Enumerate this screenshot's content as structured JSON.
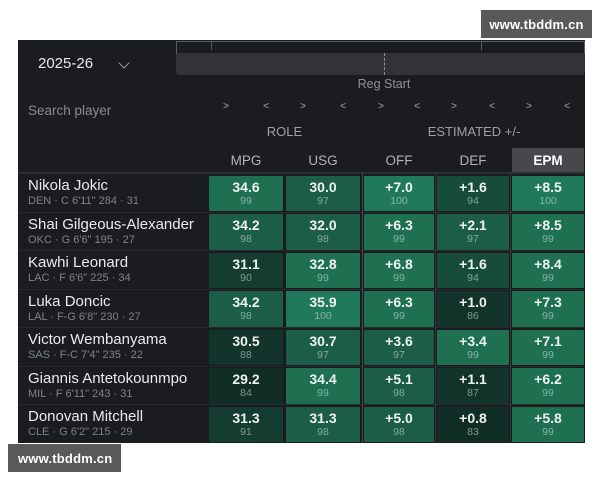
{
  "watermark": {
    "text": "www.tbddm.cn"
  },
  "season_select": {
    "value": "2025-26"
  },
  "slider": {
    "label": "Reg Start"
  },
  "search": {
    "placeholder": "Search player"
  },
  "table": {
    "groups": [
      {
        "label": "ROLE"
      },
      {
        "label": "ESTIMATED +/-"
      }
    ],
    "columns": [
      "MPG",
      "USG",
      "OFF",
      "DEF",
      "EPM"
    ],
    "selected_column": "EPM",
    "sort_arrows": {
      "asc": ">",
      "desc": "<"
    },
    "rows": [
      {
        "name": "Nikola Jokic",
        "meta": "DEN · C 6'11\" 284 · 31",
        "cells": [
          {
            "v": "34.6",
            "p": 99
          },
          {
            "v": "30.0",
            "p": 97
          },
          {
            "v": "+7.0",
            "p": 100
          },
          {
            "v": "+1.6",
            "p": 94
          },
          {
            "v": "+8.5",
            "p": 100
          }
        ]
      },
      {
        "name": "Shai Gilgeous-Alexander",
        "meta": "OKC · G 6'6\" 195 · 27",
        "cells": [
          {
            "v": "34.2",
            "p": 98
          },
          {
            "v": "32.0",
            "p": 98
          },
          {
            "v": "+6.3",
            "p": 99
          },
          {
            "v": "+2.1",
            "p": 97
          },
          {
            "v": "+8.5",
            "p": 99
          }
        ]
      },
      {
        "name": "Kawhi Leonard",
        "meta": "LAC · F 6'6\" 225 · 34",
        "cells": [
          {
            "v": "31.1",
            "p": 90
          },
          {
            "v": "32.8",
            "p": 99
          },
          {
            "v": "+6.8",
            "p": 99
          },
          {
            "v": "+1.6",
            "p": 94
          },
          {
            "v": "+8.4",
            "p": 99
          }
        ]
      },
      {
        "name": "Luka Doncic",
        "meta": "LAL · F-G 6'8\" 230 · 27",
        "cells": [
          {
            "v": "34.2",
            "p": 98
          },
          {
            "v": "35.9",
            "p": 100
          },
          {
            "v": "+6.3",
            "p": 99
          },
          {
            "v": "+1.0",
            "p": 86
          },
          {
            "v": "+7.3",
            "p": 99
          }
        ]
      },
      {
        "name": "Victor Wembanyama",
        "meta": "SAS · F-C 7'4\" 235 · 22",
        "cells": [
          {
            "v": "30.5",
            "p": 88
          },
          {
            "v": "30.7",
            "p": 97
          },
          {
            "v": "+3.6",
            "p": 97
          },
          {
            "v": "+3.4",
            "p": 99
          },
          {
            "v": "+7.1",
            "p": 99
          }
        ]
      },
      {
        "name": "Giannis Antetokounmpo",
        "meta": "MIL · F 6'11\" 243 · 31",
        "cells": [
          {
            "v": "29.2",
            "p": 84
          },
          {
            "v": "34.4",
            "p": 99
          },
          {
            "v": "+5.1",
            "p": 98
          },
          {
            "v": "+1.1",
            "p": 87
          },
          {
            "v": "+6.2",
            "p": 99
          }
        ]
      },
      {
        "name": "Donovan Mitchell",
        "meta": "CLE · G 6'2\" 215 · 29",
        "cells": [
          {
            "v": "31.3",
            "p": 91
          },
          {
            "v": "31.3",
            "p": 98
          },
          {
            "v": "+5.0",
            "p": 98
          },
          {
            "v": "+0.8",
            "p": 83
          },
          {
            "v": "+5.8",
            "p": 99
          }
        ]
      }
    ],
    "color_scale": [
      {
        "min": 100,
        "color": "#20795a"
      },
      {
        "min": 99,
        "color": "#1e7051"
      },
      {
        "min": 97,
        "color": "#1b5d46"
      },
      {
        "min": 93,
        "color": "#174b3a"
      },
      {
        "min": 89,
        "color": "#143c31"
      },
      {
        "min": 85,
        "color": "#12342b"
      },
      {
        "min": 0,
        "color": "#102d26"
      }
    ]
  }
}
